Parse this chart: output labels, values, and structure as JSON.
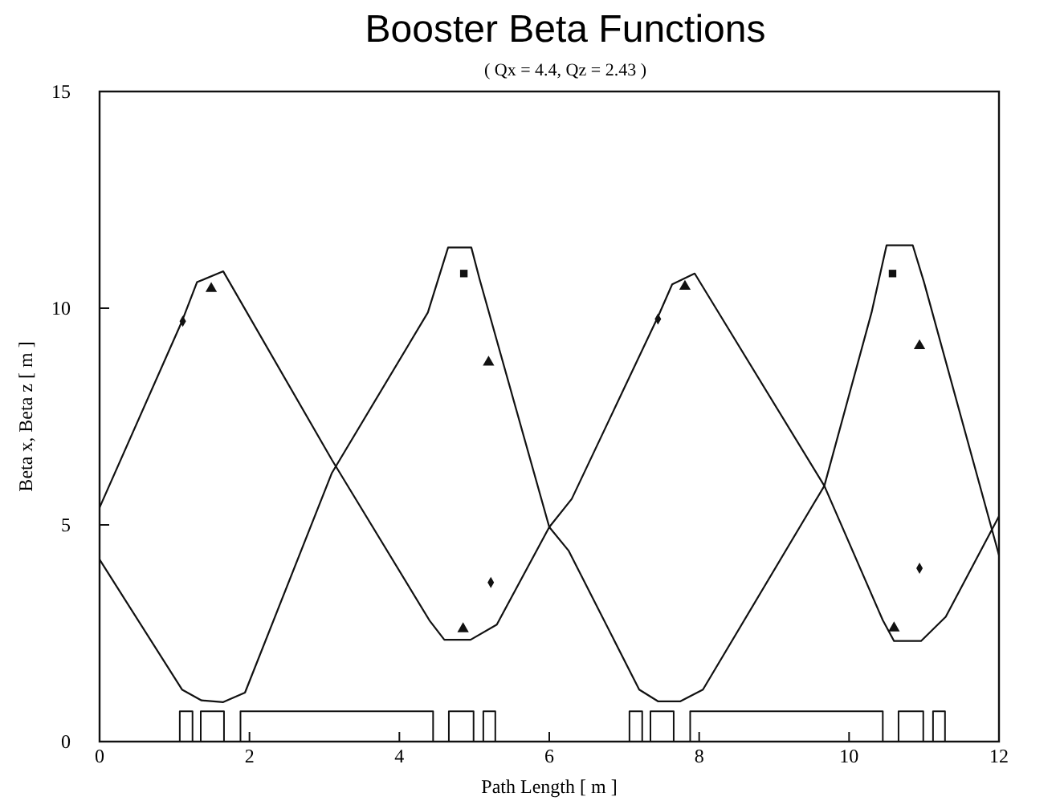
{
  "chart_data": {
    "type": "line",
    "title": "Booster Beta Functions",
    "subtitle": "( Qx = 4.4, Qz = 2.43 )",
    "xlabel": "Path Length [ m ]",
    "ylabel": "Beta x, Beta z [ m ]",
    "xlim": [
      0,
      12
    ],
    "xticks": [
      0,
      2,
      4,
      6,
      8,
      10,
      12
    ],
    "ylim": [
      0,
      15
    ],
    "yticks": [
      0,
      5,
      10,
      15
    ],
    "grid": false,
    "series": [
      {
        "color": "#111111",
        "marker": "none",
        "x": [
          0,
          1.1,
          1.3,
          1.65,
          3.1,
          4.4,
          4.6,
          4.95,
          5.3,
          6.0,
          6.3,
          7.45,
          7.64,
          7.94,
          9.67,
          10.45,
          10.6,
          10.96,
          11.29,
          12
        ],
        "values": [
          5.4,
          9.7,
          10.6,
          10.85,
          6.5,
          2.8,
          2.35,
          2.35,
          2.7,
          4.95,
          5.6,
          9.8,
          10.55,
          10.8,
          5.9,
          2.8,
          2.32,
          2.32,
          2.88,
          5.2
        ]
      },
      {
        "color": "#111111",
        "marker": "none",
        "x": [
          0,
          1.1,
          1.36,
          1.65,
          1.94,
          3.1,
          4.38,
          4.65,
          4.96,
          5.07,
          6.0,
          6.26,
          7.2,
          7.45,
          7.75,
          8.05,
          9.67,
          10.3,
          10.5,
          10.85,
          11.0,
          12
        ],
        "values": [
          4.2,
          1.2,
          0.95,
          0.91,
          1.13,
          6.2,
          9.9,
          11.4,
          11.4,
          10.67,
          4.95,
          4.4,
          1.2,
          0.93,
          0.93,
          1.2,
          5.9,
          9.9,
          11.45,
          11.45,
          10.6,
          4.3
        ]
      },
      {
        "type": "scatter",
        "color": "#111111",
        "marker": "triangle",
        "x": [
          1.49,
          4.85,
          5.19,
          7.81,
          10.6,
          10.94
        ],
        "values": [
          10.45,
          2.6,
          8.75,
          10.5,
          2.62,
          9.13
        ]
      },
      {
        "type": "scatter",
        "color": "#111111",
        "marker": "square",
        "x": [
          4.86,
          10.58
        ],
        "values": [
          10.8,
          10.8
        ]
      },
      {
        "type": "step",
        "color": "#111111",
        "x": [
          0,
          1.07,
          1.24,
          1.35,
          1.66,
          1.88,
          4.45,
          4.66,
          4.99,
          5.12,
          5.28,
          7.07,
          7.24,
          7.35,
          7.66,
          7.88,
          10.45,
          10.66,
          10.99,
          11.12,
          11.28,
          12
        ],
        "values": [
          0,
          0.7,
          0,
          0.7,
          0,
          0.7,
          0,
          0.7,
          0,
          0.7,
          0,
          0.7,
          0,
          0.7,
          0,
          0.7,
          0,
          0.7,
          0,
          0.7,
          0,
          0
        ]
      },
      {
        "type": "scatter",
        "color": "#111111",
        "marker": "diamond",
        "x": [
          1.11,
          5.22,
          7.45,
          10.94
        ],
        "values": [
          9.7,
          3.67,
          9.75,
          4.0
        ]
      }
    ]
  }
}
